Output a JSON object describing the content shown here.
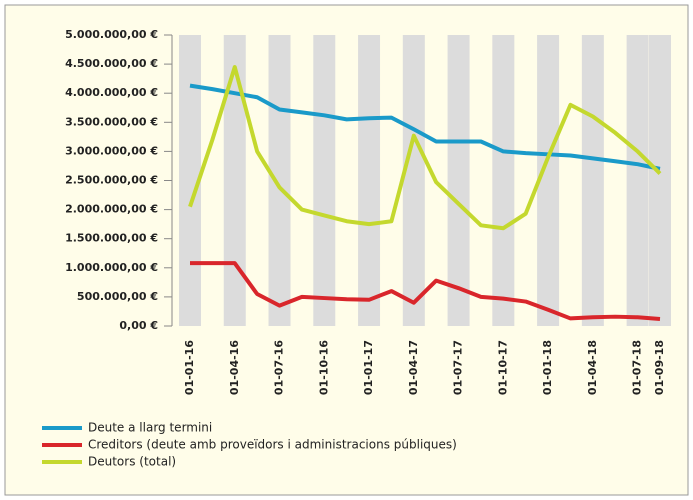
{
  "chart_data": {
    "type": "line",
    "categories": [
      "01-01-16",
      null,
      "01-04-16",
      null,
      "01-07-16",
      null,
      "01-10-16",
      null,
      "01-01-17",
      null,
      "01-04-17",
      null,
      "01-07-17",
      null,
      "01-10-17",
      null,
      "01-01-18",
      null,
      "01-04-18",
      null,
      "01-07-18",
      "01-09-18"
    ],
    "series": [
      {
        "name": "Deute a llarg termini",
        "color": "#1a9ac9",
        "values": [
          4130000,
          4070000,
          4000000,
          3930000,
          3720000,
          3670000,
          3620000,
          3550000,
          3570000,
          3580000,
          3380000,
          3170000,
          3170000,
          3170000,
          3000000,
          2970000,
          2950000,
          2930000,
          2880000,
          2830000,
          2780000,
          2700000
        ]
      },
      {
        "name": "Creditors (deute amb proveïdors i administracions públiques)",
        "color": "#d9262b",
        "values": [
          1080000,
          1080000,
          1080000,
          550000,
          350000,
          500000,
          480000,
          460000,
          450000,
          600000,
          400000,
          780000,
          650000,
          500000,
          470000,
          420000,
          280000,
          130000,
          150000,
          160000,
          150000,
          120000
        ]
      },
      {
        "name": "Deutors (total)",
        "color": "#c4d82e",
        "values": [
          2050000,
          3200000,
          4450000,
          3000000,
          2380000,
          2000000,
          1900000,
          1800000,
          1750000,
          1800000,
          3270000,
          2470000,
          2100000,
          1730000,
          1680000,
          1930000,
          2900000,
          3800000,
          3600000,
          3320000,
          3000000,
          2620000
        ]
      }
    ],
    "ylim": [
      0,
      5000000
    ],
    "yticks": [
      {
        "value": 0,
        "label": "0,00 €"
      },
      {
        "value": 500000,
        "label": "500.000,00 €"
      },
      {
        "value": 1000000,
        "label": "1.000.000,00 €"
      },
      {
        "value": 1500000,
        "label": "1.500.000,00 €"
      },
      {
        "value": 2000000,
        "label": "2.000.000,00 €"
      },
      {
        "value": 2500000,
        "label": "2.500.000,00 €"
      },
      {
        "value": 3000000,
        "label": "3.000.000,00 €"
      },
      {
        "value": 3500000,
        "label": "3.500.000,00 €"
      },
      {
        "value": 4000000,
        "label": "4.000.000,00 €"
      },
      {
        "value": 4500000,
        "label": "4.500.000,00 €"
      },
      {
        "value": 5000000,
        "label": "5.000.000,00 €"
      }
    ],
    "legend": "bottom-left"
  }
}
